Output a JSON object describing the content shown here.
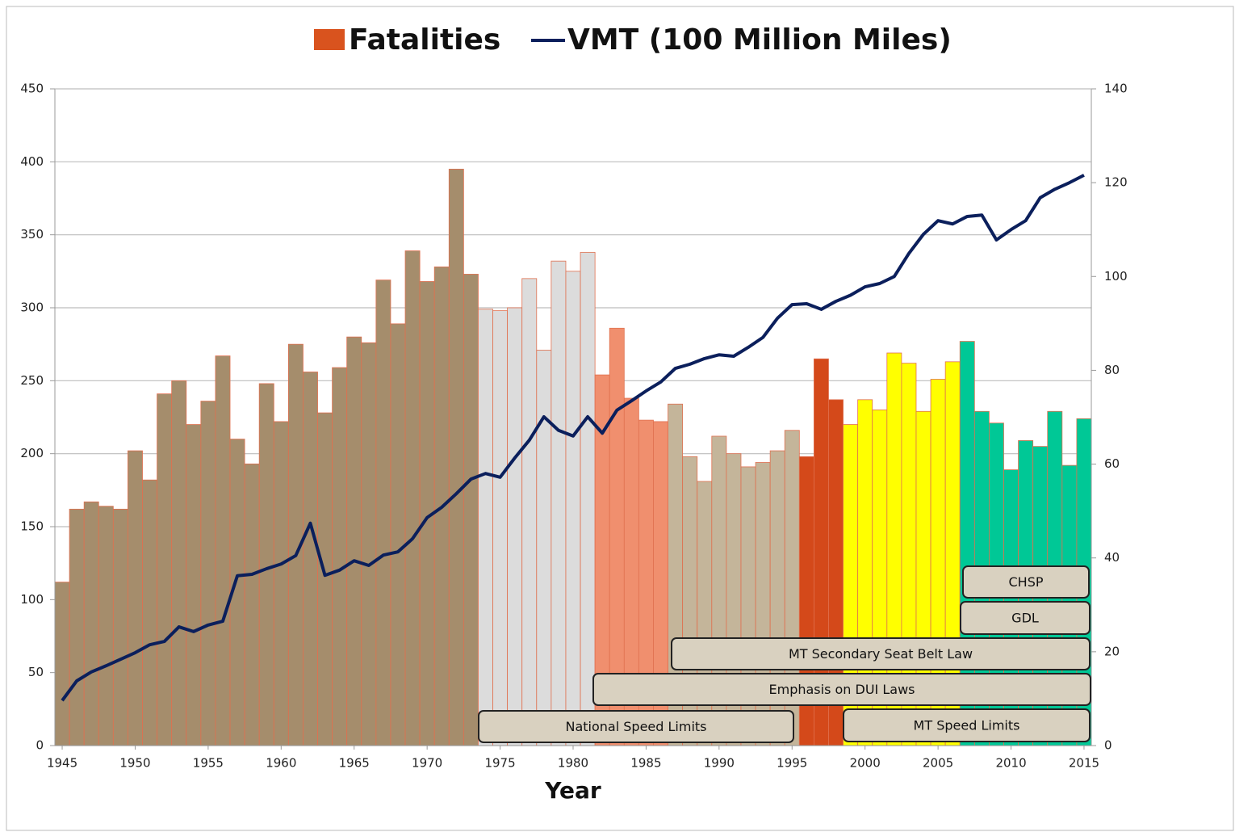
{
  "chart_data": {
    "type": "bar-line",
    "x_label": "Year",
    "x": [
      1945,
      1946,
      1947,
      1948,
      1949,
      1950,
      1951,
      1952,
      1953,
      1954,
      1955,
      1956,
      1957,
      1958,
      1959,
      1960,
      1961,
      1962,
      1963,
      1964,
      1965,
      1966,
      1967,
      1968,
      1969,
      1970,
      1971,
      1972,
      1973,
      1974,
      1975,
      1976,
      1977,
      1978,
      1979,
      1980,
      1981,
      1982,
      1983,
      1984,
      1985,
      1986,
      1987,
      1988,
      1989,
      1990,
      1991,
      1992,
      1993,
      1994,
      1995,
      1996,
      1997,
      1998,
      1999,
      2000,
      2001,
      2002,
      2003,
      2004,
      2005,
      2006,
      2007,
      2008,
      2009,
      2010,
      2011,
      2012,
      2013,
      2014,
      2015
    ],
    "xticks": [
      1945,
      1950,
      1955,
      1960,
      1965,
      1970,
      1975,
      1980,
      1985,
      1990,
      1995,
      2000,
      2005,
      2010,
      2015
    ],
    "ylim": [
      0,
      450
    ],
    "yticks": [
      0,
      50,
      100,
      150,
      200,
      250,
      300,
      350,
      400,
      450
    ],
    "y2lim": [
      0,
      140
    ],
    "y2ticks": [
      0,
      20,
      40,
      60,
      80,
      100,
      120,
      140
    ],
    "grid": true,
    "legend": "top",
    "series": [
      {
        "name": "Fatalities",
        "color": "#d9531e",
        "type": "bar",
        "values": [
          112,
          162,
          167,
          164,
          162,
          202,
          182,
          241,
          250,
          220,
          236,
          267,
          210,
          193,
          248,
          222,
          275,
          256,
          228,
          259,
          280,
          276,
          319,
          289,
          339,
          318,
          328,
          395,
          323,
          299,
          298,
          300,
          320,
          271,
          332,
          325,
          338,
          254,
          286,
          238,
          223,
          222,
          234,
          198,
          181,
          212,
          200,
          191,
          194,
          202,
          216,
          198,
          265,
          237,
          220,
          237,
          230,
          269,
          262,
          229,
          251,
          263,
          277,
          229,
          221,
          189,
          209,
          205,
          229,
          192,
          224
        ],
        "colors": [
          "#a58d6c",
          "#a58d6c",
          "#a58d6c",
          "#a58d6c",
          "#a58d6c",
          "#a58d6c",
          "#a58d6c",
          "#a58d6c",
          "#a58d6c",
          "#a58d6c",
          "#a58d6c",
          "#a58d6c",
          "#a58d6c",
          "#a58d6c",
          "#a58d6c",
          "#a58d6c",
          "#a58d6c",
          "#a58d6c",
          "#a58d6c",
          "#a58d6c",
          "#a58d6c",
          "#a58d6c",
          "#a58d6c",
          "#a58d6c",
          "#a58d6c",
          "#a58d6c",
          "#a58d6c",
          "#a58d6c",
          "#a58d6c",
          "#dcdcdc",
          "#dcdcdc",
          "#dcdcdc",
          "#dcdcdc",
          "#dcdcdc",
          "#dcdcdc",
          "#dcdcdc",
          "#dcdcdc",
          "#f08f6e",
          "#f08f6e",
          "#f08f6e",
          "#f08f6e",
          "#f08f6e",
          "#c4b59a",
          "#c4b59a",
          "#c4b59a",
          "#c4b59a",
          "#c4b59a",
          "#c4b59a",
          "#c4b59a",
          "#c4b59a",
          "#c4b59a",
          "#d4491a",
          "#d4491a",
          "#d4491a",
          "#ffff00",
          "#ffff00",
          "#ffff00",
          "#ffff00",
          "#ffff00",
          "#ffff00",
          "#ffff00",
          "#ffff00",
          "#00c896",
          "#00c896",
          "#00c896",
          "#00c896",
          "#00c896",
          "#00c896",
          "#00c896",
          "#00c896",
          "#00c896"
        ]
      },
      {
        "name": "VMT (100 Million Miles)",
        "color": "#0b1f5c",
        "type": "line",
        "axis": "y2",
        "values": [
          9.6,
          13.8,
          15.7,
          17,
          18.4,
          19.8,
          21.5,
          22.2,
          25.3,
          24.3,
          25.7,
          26.5,
          36.2,
          36.5,
          37.7,
          38.7,
          40.5,
          47.4,
          36.3,
          37.4,
          39.4,
          38.4,
          40.6,
          41.3,
          44.1,
          48.6,
          50.8,
          53.7,
          56.8,
          58,
          57.2,
          61.3,
          65.1,
          70.1,
          67.2,
          66,
          70.1,
          66.6,
          71.5,
          73.5,
          75.6,
          77.5,
          80.4,
          81.3,
          82.5,
          83.3,
          83,
          84.9,
          87,
          91.1,
          94,
          94.2,
          93,
          94.7,
          96,
          97.8,
          98.5,
          100,
          104.9,
          109,
          111.9,
          111.2,
          112.8,
          113.1,
          107.8,
          110,
          111.9,
          116.8,
          118.6,
          120,
          121.6
        ]
      }
    ],
    "annotations": [
      "CHSP",
      "GDL",
      "MT Secondary Seat Belt Law",
      "Emphasis on DUI Laws",
      "National Speed Limits",
      "MT Speed Limits"
    ]
  }
}
